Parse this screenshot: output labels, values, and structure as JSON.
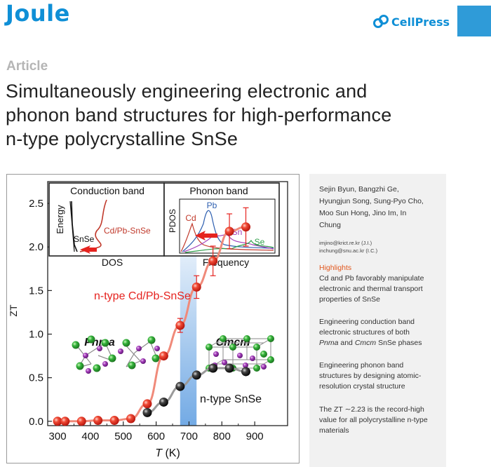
{
  "header": {
    "journal": "Joule",
    "publisher": "CellPress",
    "article_type": "Article",
    "title_lines": [
      "Simultaneously engineering electronic and",
      "phonon band structures for high-performance",
      "n-type polycrystalline SnSe"
    ]
  },
  "sidebar": {
    "authors_lines": [
      "Sejin Byun, Bangzhi Ge,",
      "Hyungjun Song, Sung-Pyo Cho,",
      "Moo Sun Hong, Jino Im, In",
      "Chung"
    ],
    "emails": [
      "imjino@krict.re.kr (J.I.)",
      "inchung@snu.ac.kr (I.C.)"
    ],
    "highlights_title": "Highlights",
    "highlight1": [
      "Cd and Pb favorably manipulate",
      "electronic and thermal transport",
      "properties of SnSe"
    ],
    "highlight2": [
      "Engineering conduction band",
      "electronic structures of both",
      "and",
      "SnSe phases",
      "Pnma",
      "Cmcm"
    ],
    "highlight3": [
      "Engineering phonon band",
      "structures by designing atomic-",
      "resolution crystal structure"
    ],
    "highlight4": [
      "The ZT ∼2.23 is the record-high",
      "value for all polycrystalline n-type",
      "materials"
    ]
  },
  "graphic": {
    "inset_left": {
      "title": "Conduction band",
      "ylabel": "Energy",
      "xlabel": "DOS",
      "label_snse": "SnSe",
      "label_cdpb": "Cd/Pb-SnSe"
    },
    "inset_right": {
      "title": "Phonon band",
      "ylabel": "PDOS",
      "xlabel": "Frequency",
      "label_pb": "Pb",
      "label_cd": "Cd",
      "label_sn": "Sn",
      "label_se": "Se"
    },
    "phase_low": "Pnma",
    "phase_high": "Cmcm",
    "ylabel": "ZT",
    "xlabel_var": "T",
    "xlabel_unit": " (K)"
  },
  "colors": {
    "brand": "#0f8fd6",
    "highlight": "#e2571d",
    "cdpb_series": "#e5231f",
    "snse_series": "#111111"
  },
  "chart_data": {
    "type": "scatter",
    "x_ticks": [
      "300",
      "400",
      "500",
      "600",
      "700",
      "800",
      "900"
    ],
    "y_ticks": [
      "0.0",
      "0.5",
      "1.0",
      "1.5",
      "2.0",
      "2.5"
    ],
    "xlim": [
      270,
      1000
    ],
    "ylim": [
      -0.05,
      2.75
    ],
    "grid": false,
    "shaded_region_x": [
      673,
      723
    ],
    "series": [
      {
        "name": "n-type Cd/Pb-SnSe",
        "color": "#e5231f",
        "x": [
          300,
          323,
          373,
          423,
          473,
          523,
          573,
          623,
          673,
          723,
          773,
          823,
          873
        ],
        "y": [
          0.0,
          0.0,
          0.0,
          0.01,
          0.01,
          0.03,
          0.2,
          0.75,
          1.1,
          1.54,
          1.84,
          2.18,
          2.23
        ],
        "errors": [
          0,
          0,
          0,
          0,
          0,
          0,
          0,
          0,
          0.08,
          0.13,
          0.17,
          0.2,
          0.22
        ]
      },
      {
        "name": "n-type SnSe",
        "color": "#111111",
        "x": [
          573,
          623,
          673,
          723,
          773,
          823,
          873
        ],
        "y": [
          0.1,
          0.22,
          0.4,
          0.53,
          0.61,
          0.61,
          0.57
        ],
        "errors": [
          0,
          0,
          0,
          0,
          0,
          0,
          0
        ]
      }
    ]
  }
}
